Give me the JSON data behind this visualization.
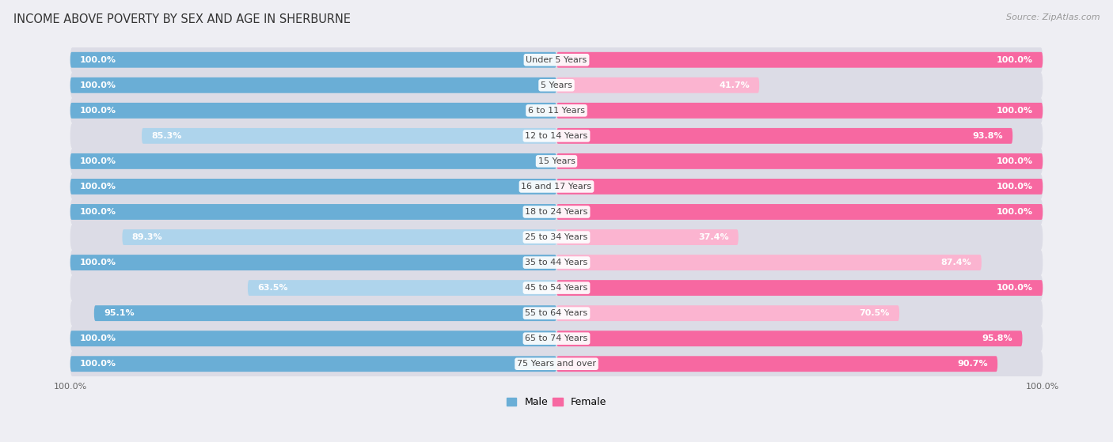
{
  "title": "INCOME ABOVE POVERTY BY SEX AND AGE IN SHERBURNE",
  "source": "Source: ZipAtlas.com",
  "categories": [
    "Under 5 Years",
    "5 Years",
    "6 to 11 Years",
    "12 to 14 Years",
    "15 Years",
    "16 and 17 Years",
    "18 to 24 Years",
    "25 to 34 Years",
    "35 to 44 Years",
    "45 to 54 Years",
    "55 to 64 Years",
    "65 to 74 Years",
    "75 Years and over"
  ],
  "male_values": [
    100.0,
    100.0,
    100.0,
    85.3,
    100.0,
    100.0,
    100.0,
    89.3,
    100.0,
    63.5,
    95.1,
    100.0,
    100.0
  ],
  "female_values": [
    100.0,
    41.7,
    100.0,
    93.8,
    100.0,
    100.0,
    100.0,
    37.4,
    87.4,
    100.0,
    70.5,
    95.8,
    90.7
  ],
  "male_color": "#6aaed6",
  "male_color_light": "#aed4ec",
  "female_color": "#f768a1",
  "female_color_light": "#fbb4d0",
  "bar_height": 0.62,
  "background_color": "#eeeef3",
  "row_bg_color": "#e2e2ea",
  "label_fontsize": 8.0,
  "title_fontsize": 10.5,
  "axis_label_fontsize": 8,
  "legend_fontsize": 9
}
